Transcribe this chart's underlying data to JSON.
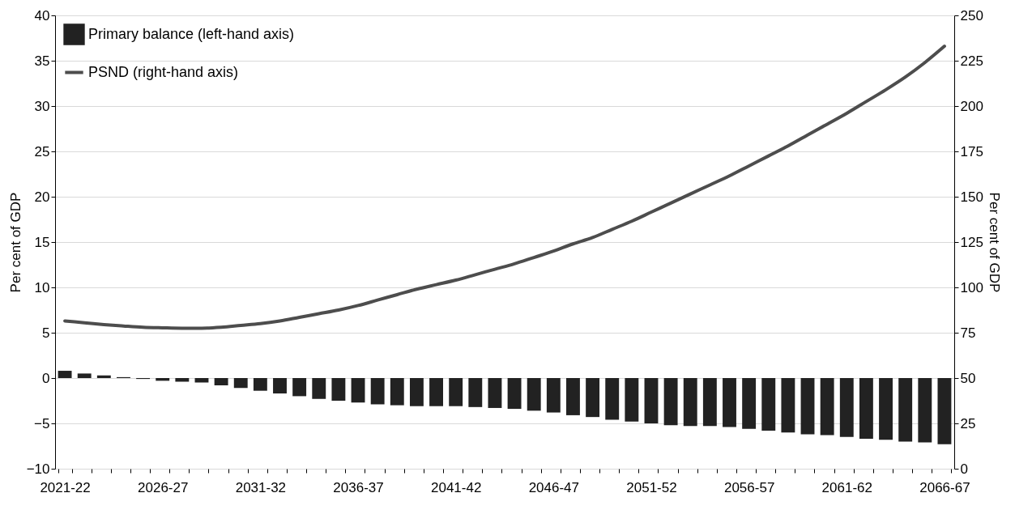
{
  "chart_data": {
    "type": "bar",
    "ylabel": "Per cent of GDP",
    "y2label": "Per cent of GDP",
    "categories": [
      "2021-22",
      null,
      null,
      null,
      null,
      "2026-27",
      null,
      null,
      null,
      null,
      "2031-32",
      null,
      null,
      null,
      null,
      "2036-37",
      null,
      null,
      null,
      null,
      "2041-42",
      null,
      null,
      null,
      null,
      "2046-47",
      null,
      null,
      null,
      null,
      "2051-52",
      null,
      null,
      null,
      null,
      "2056-57",
      null,
      null,
      null,
      null,
      "2061-62",
      null,
      null,
      null,
      null,
      "2066-67"
    ],
    "series": [
      {
        "name": "Primary balance (left-hand axis)",
        "color": "#222222",
        "values": [
          0.8,
          0.5,
          0.3,
          0.1,
          -0.1,
          -0.3,
          -0.4,
          -0.5,
          -0.8,
          -1.1,
          -1.4,
          -1.7,
          -2.0,
          -2.3,
          -2.5,
          -2.7,
          -2.9,
          -3.0,
          -3.1,
          -3.1,
          -3.1,
          -3.2,
          -3.3,
          -3.4,
          -3.6,
          -3.8,
          -4.1,
          -4.3,
          -4.6,
          -4.8,
          -5.0,
          -5.2,
          -5.3,
          -5.3,
          -5.4,
          -5.6,
          -5.8,
          -6.0,
          -6.2,
          -6.3,
          -6.5,
          -6.7,
          -6.8,
          -7.0,
          -7.1,
          -7.3
        ]
      },
      {
        "name": "PSND (right-hand axis)",
        "type": "line",
        "axis": "y2",
        "color": "#4d4d4d",
        "values": [
          81.5,
          80.5,
          79.5,
          78.7,
          78,
          77.7,
          77.5,
          77.5,
          78,
          79,
          80,
          81.5,
          83.5,
          85.5,
          87.5,
          90,
          93,
          96,
          99,
          101.5,
          104,
          107,
          110,
          113,
          116.5,
          120,
          124,
          127.5,
          132,
          136.5,
          141.5,
          146.5,
          151.5,
          156.5,
          161.5,
          167,
          172.5,
          178,
          184,
          190,
          196,
          202.5,
          209,
          216,
          224,
          233
        ]
      }
    ],
    "ylim": [
      -10,
      40
    ],
    "yticks": [
      -10,
      -5,
      0,
      5,
      10,
      15,
      20,
      25,
      30,
      35,
      40
    ],
    "y2lim": [
      0,
      250
    ],
    "y2ticks": [
      0,
      25,
      50,
      75,
      100,
      125,
      150,
      175,
      200,
      225,
      250
    ],
    "grid": "y",
    "legend": "top left"
  }
}
